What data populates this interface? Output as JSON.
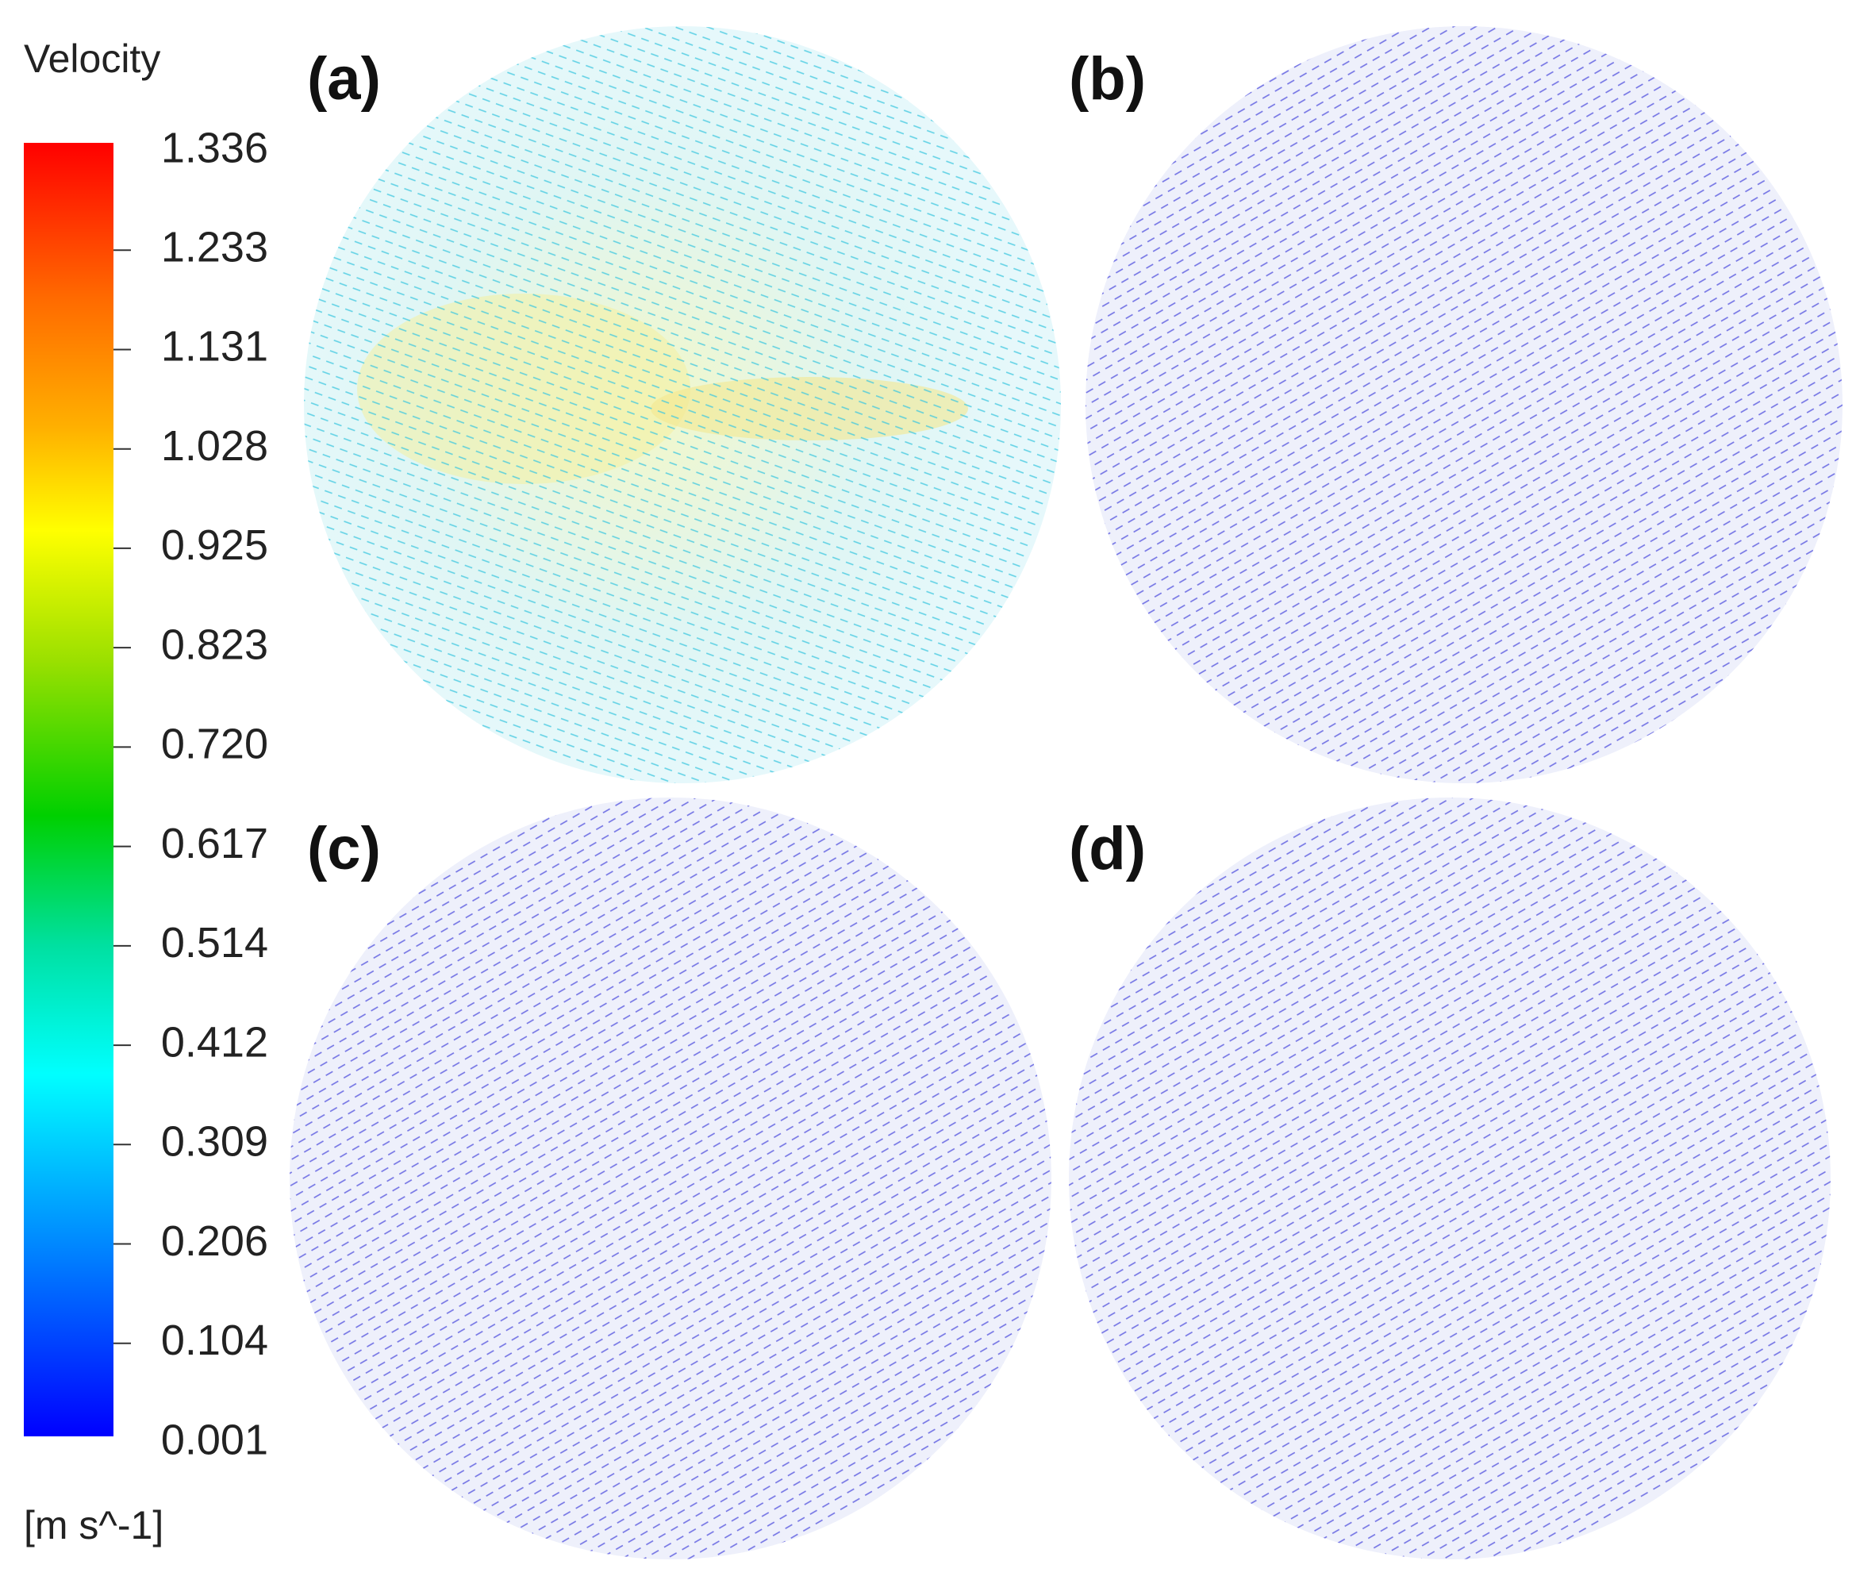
{
  "colorbar": {
    "title": "Velocity",
    "unit": "[m s^-1]",
    "ticks": [
      "1.336",
      "1.233",
      "1.131",
      "1.028",
      "0.925",
      "0.823",
      "0.720",
      "0.617",
      "0.514",
      "0.412",
      "0.309",
      "0.206",
      "0.104",
      "0.001"
    ]
  },
  "panels": [
    {
      "label": "(a)"
    },
    {
      "label": "(b)"
    },
    {
      "label": "(c)"
    },
    {
      "label": "(d)"
    }
  ]
}
